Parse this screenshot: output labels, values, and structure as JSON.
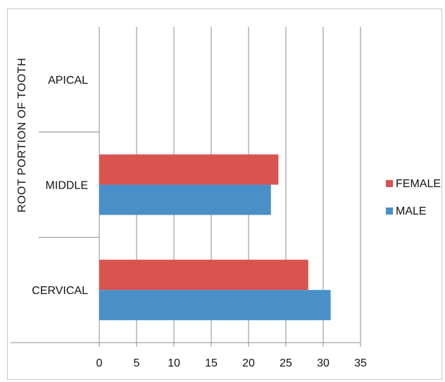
{
  "chart_data": {
    "type": "bar",
    "orientation": "horizontal",
    "categories": [
      "CERVICAL",
      "MIDDLE",
      "APICAL"
    ],
    "series": [
      {
        "name": "MALE",
        "values": [
          31,
          23,
          0
        ],
        "color": "#4a90c8"
      },
      {
        "name": "FEMALE",
        "values": [
          28,
          24,
          0
        ],
        "color": "#d9534f"
      }
    ],
    "xlim": [
      0,
      35
    ],
    "x_ticks": [
      0,
      5,
      10,
      15,
      20,
      25,
      30,
      35
    ],
    "xlabel": "",
    "ylabel": "ROOT PORTION OF TOOTH",
    "grid": "vertical",
    "legend": {
      "position": "right",
      "entries": [
        "FEMALE",
        "MALE"
      ]
    }
  }
}
